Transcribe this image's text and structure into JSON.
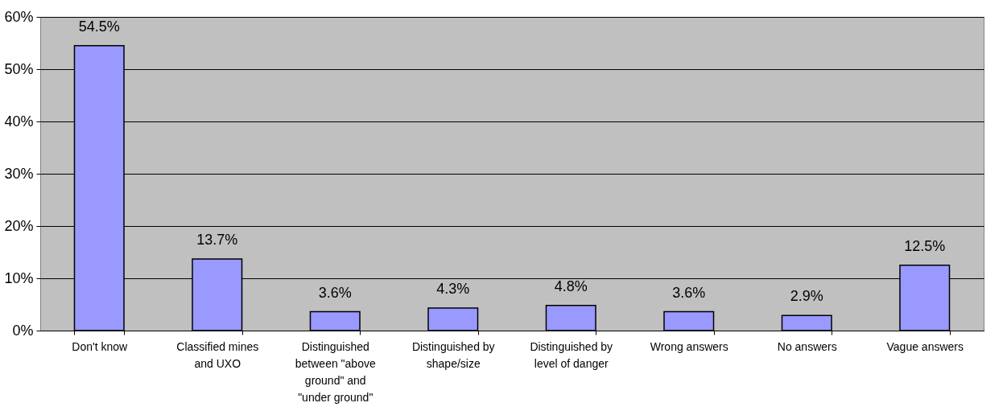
{
  "chart_data": {
    "type": "bar",
    "categories": [
      "Don't know",
      "Classified mines and UXO",
      "Distinguished between \"above ground\" and \"under ground\"",
      "Distinguished by shape/size",
      "Distinguished by level of danger",
      "Wrong answers",
      "No answers",
      "Vague answers"
    ],
    "values": [
      54.5,
      13.7,
      3.6,
      4.3,
      4.8,
      3.6,
      2.9,
      12.5
    ],
    "value_labels": [
      "54.5%",
      "13.7%",
      "3.6%",
      "4.3%",
      "4.8%",
      "3.6%",
      "2.9%",
      "12.5%"
    ],
    "color": "#9999ff",
    "ylim": [
      0,
      60
    ],
    "yticks": [
      {
        "value": 0,
        "label": "0%"
      },
      {
        "value": 10,
        "label": "10%"
      },
      {
        "value": 20,
        "label": "20%"
      },
      {
        "value": 30,
        "label": "30%"
      },
      {
        "value": 40,
        "label": "40%"
      },
      {
        "value": 50,
        "label": "50%"
      },
      {
        "value": 60,
        "label": "60%"
      }
    ],
    "grid": "y"
  }
}
